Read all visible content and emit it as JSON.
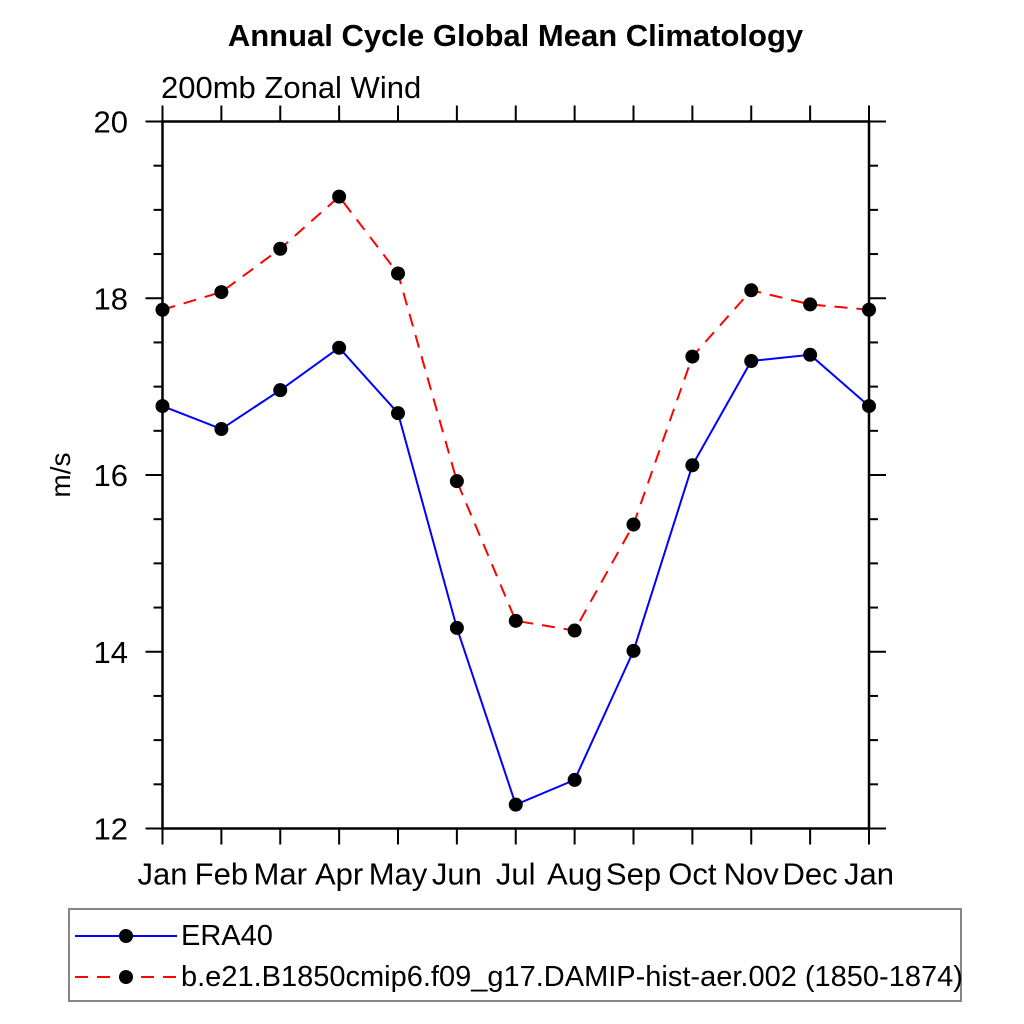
{
  "title": "Annual Cycle Global Mean Climatology",
  "subtitle": "200mb Zonal Wind",
  "legend": {
    "items": [
      {
        "label": "ERA40"
      },
      {
        "label": "b.e21.B1850cmip6.f09_g17.DAMIP-hist-aer.002 (1850-1874)"
      }
    ]
  },
  "chart_data": {
    "type": "line",
    "title": "Annual Cycle Global Mean Climatology",
    "subtitle": "200mb Zonal Wind",
    "xlabel": "",
    "ylabel": "m/s",
    "categories": [
      "Jan",
      "Feb",
      "Mar",
      "Apr",
      "May",
      "Jun",
      "Jul",
      "Aug",
      "Sep",
      "Oct",
      "Nov",
      "Dec",
      "Jan"
    ],
    "ylim": [
      12,
      20
    ],
    "y_major_ticks": [
      12,
      14,
      16,
      18,
      20
    ],
    "y_minor_step": 0.5,
    "grid": false,
    "legend_position": "bottom-left-box",
    "frame_color": "#000000",
    "marker": {
      "shape": "circle",
      "color": "#000000",
      "radius": 7
    },
    "series": [
      {
        "name": "ERA40",
        "color": "#0000ff",
        "style": "solid",
        "dash": "none",
        "values": [
          16.78,
          16.52,
          16.96,
          17.44,
          16.7,
          14.27,
          12.27,
          12.55,
          14.01,
          16.11,
          17.29,
          17.36,
          16.78
        ]
      },
      {
        "name": "b.e21.B1850cmip6.f09_g17.DAMIP-hist-aer.002 (1850-1874)",
        "color": "#ff0000",
        "style": "dashed",
        "dash": "13 9",
        "values": [
          17.87,
          18.07,
          18.56,
          19.15,
          18.28,
          15.93,
          14.35,
          14.24,
          15.44,
          17.34,
          18.09,
          17.93,
          17.87
        ]
      }
    ]
  }
}
